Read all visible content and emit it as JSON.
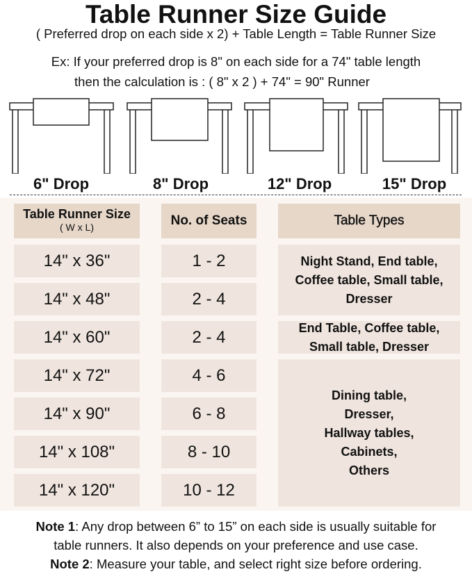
{
  "title": "Table Runner Size Guide",
  "formula": "( Preferred drop on each side x 2) + Table Length = Table Runner Size",
  "example_line1": "Ex: If your preferred drop is 8\" on each side for a 74\" table length",
  "example_line2": "then the calculation is : ( 8\" x 2 ) + 74\" = 90\" Runner",
  "drops": [
    {
      "label": "6\" Drop",
      "inches": 6
    },
    {
      "label": "8\" Drop",
      "inches": 8
    },
    {
      "label": "12\" Drop",
      "inches": 12
    },
    {
      "label": "15\" Drop",
      "inches": 15
    }
  ],
  "table": {
    "headers": {
      "size": "Table Runner Size",
      "size_sub": "( W x L)",
      "seats": "No. of Seats",
      "types": "Table Types"
    },
    "rows": [
      {
        "size": "14\" x 36\"",
        "seats": "1 - 2"
      },
      {
        "size": "14\" x 48\"",
        "seats": "2 - 4"
      },
      {
        "size": "14\" x 60\"",
        "seats": "2 - 4"
      },
      {
        "size": "14\" x 72\"",
        "seats": "4 - 6"
      },
      {
        "size": "14\" x 90\"",
        "seats": "6 - 8"
      },
      {
        "size": "14\" x 108\"",
        "seats": "8 - 10"
      },
      {
        "size": "14\" x 120\"",
        "seats": "10 - 12"
      }
    ],
    "types": [
      "Night Stand, End table, Coffee table, Small table, Dresser",
      "End Table, Coffee table, Small table, Dresser",
      "Dining table, Dresser, Hallway tables, Cabinets, Others"
    ]
  },
  "notes": {
    "note1_label": "Note 1",
    "note1_text": ": Any drop between 6” to 15” on each side is usually suitable for",
    "note1_text2": "table runners. It also depends on your preference and use case.",
    "note2_label": "Note 2",
    "note2_text": ": Measure your table, and select right size before ordering."
  },
  "colors": {
    "header_cell": "#e6d7c9",
    "data_cell": "#efe5de",
    "table_bg": "#fbf5f1"
  }
}
